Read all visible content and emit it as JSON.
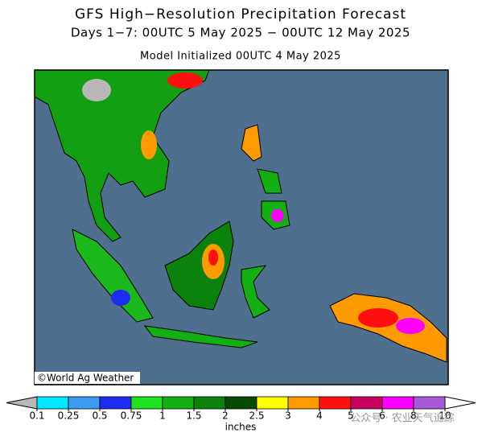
{
  "header": {
    "title": "GFS High−Resolution Precipitation Forecast",
    "subtitle": "Days 1−7: 00UTC 5 May 2025 − 00UTC 12 May 2025",
    "model_run": "Model Initialized 00UTC 4 May 2025"
  },
  "map": {
    "credit": "©World Ag Weather"
  },
  "colorbar": {
    "ticks": [
      "0.1",
      "0.25",
      "0.5",
      "0.75",
      "1",
      "1.5",
      "2",
      "2.5",
      "3",
      "4",
      "5",
      "6",
      "8",
      "10"
    ],
    "colors": [
      "#00e8ff",
      "#3d9bf0",
      "#1c2cf0",
      "#1ee31e",
      "#12b012",
      "#0b820b",
      "#064a06",
      "#ffff00",
      "#ff9a00",
      "#ff1010",
      "#c8005f",
      "#ff00ff",
      "#a75ad8"
    ],
    "below_color": "#b8b8b8",
    "above_color": "#ffffff",
    "unit": "inches"
  },
  "watermark": "公众号 · 农业天气追踪"
}
